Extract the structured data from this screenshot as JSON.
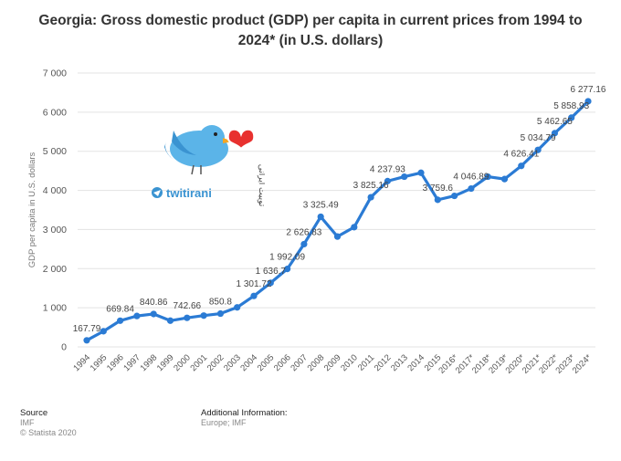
{
  "title": "Georgia: Gross domestic product (GDP) per capita in current prices from 1994 to 2024* (in U.S. dollars)",
  "watermark": {
    "brand": "twitirani",
    "script_text": "توییت ایرانی"
  },
  "footer": {
    "source_heading": "Source",
    "source_value": "IMF",
    "copyright": "© Statista 2020",
    "additional_heading": "Additional Information:",
    "additional_value": "Europe; IMF"
  },
  "colors": {
    "line": "#2b7bd4",
    "grid": "#e3e3e3",
    "bird": "#5bb4e8",
    "heart": "#e8312f"
  },
  "chart_data": {
    "type": "line",
    "title": "Georgia: Gross domestic product (GDP) per capita in current prices from 1994 to 2024* (in U.S. dollars)",
    "ylabel": "GDP per capita in U.S. dollars",
    "xlabel": "",
    "ylim": [
      0,
      7000
    ],
    "yticks": [
      0,
      1000,
      2000,
      3000,
      4000,
      5000,
      6000,
      7000
    ],
    "ytick_labels": [
      "0",
      "1 000",
      "2 000",
      "3 000",
      "4 000",
      "5 000",
      "6 000",
      "7 000"
    ],
    "grid": true,
    "categories": [
      "1994",
      "1995",
      "1996",
      "1997",
      "1998",
      "1999",
      "2000",
      "2001",
      "2002",
      "2003",
      "2004",
      "2005",
      "2006",
      "2007",
      "2008",
      "2009",
      "2010",
      "2011",
      "2012",
      "2013",
      "2014",
      "2015",
      "2016*",
      "2017*",
      "2018*",
      "2019*",
      "2020*",
      "2021*",
      "2022*",
      "2023*",
      "2024*"
    ],
    "values": [
      167.79,
      400,
      669.84,
      790,
      840.86,
      670,
      742.66,
      800,
      850.8,
      1010,
      1301.72,
      1636.7,
      1992.09,
      2626.83,
      3325.49,
      2820,
      3060,
      3825.16,
      4237.93,
      4350,
      4450,
      3759.6,
      3860,
      4046.89,
      4350,
      4290,
      4626.41,
      5034.79,
      5462.65,
      5858.93,
      6277.16
    ],
    "data_labels": [
      "167.79",
      "",
      "669.84",
      "",
      "840.86",
      "",
      "742.66",
      "",
      "850.8",
      "",
      "1 301.72",
      "1 636.7",
      "1 992.09",
      "2 626.83",
      "3 325.49",
      "",
      "",
      "3 825.16",
      "4 237.93",
      "",
      "",
      "3 759.6",
      "",
      "4 046.89",
      "",
      "",
      "4 626.41",
      "5 034.79",
      "5 462.65",
      "5 858.93",
      "6 277.16"
    ]
  }
}
